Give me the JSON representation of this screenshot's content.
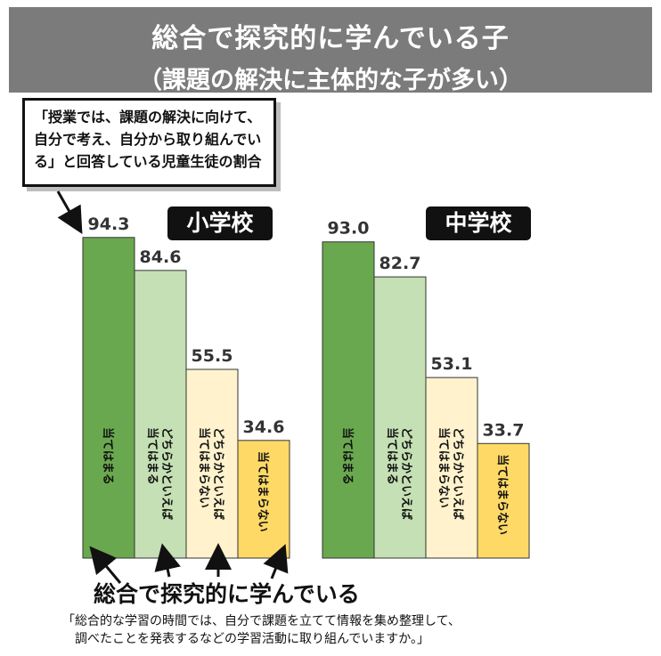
{
  "header": {
    "title": "総合で探究的に学んでいる子",
    "subtitle": "（課題の解決に主体的な子が多い）"
  },
  "callout": {
    "text": "「授業では、課題の解決に向けて、自分で考え、自分から取り組んでいる」と回答している児童生徒の割合"
  },
  "chart_data": [
    {
      "type": "bar",
      "title": "小学校",
      "categories": [
        "当てはまる",
        "どちらかといえば当てはまる",
        "どちらかといえば当てはまらない",
        "当てはまらない"
      ],
      "values": [
        94.3,
        84.6,
        55.5,
        34.6
      ],
      "value_labels": [
        "94.3",
        "84.6",
        "55.5",
        "34.6"
      ],
      "ylim": [
        0,
        100
      ]
    },
    {
      "type": "bar",
      "title": "中学校",
      "categories": [
        "当てはまる",
        "どちらかといえば当てはまる",
        "どちらかといえば当てはまらない",
        "当てはまらない"
      ],
      "values": [
        93.0,
        82.7,
        53.1,
        33.7
      ],
      "value_labels": [
        "93.0",
        "82.7",
        "53.1",
        "33.7"
      ],
      "ylim": [
        0,
        100
      ]
    }
  ],
  "colors": [
    "#6aa84f",
    "#c5e0b4",
    "#fff2cc",
    "#ffd966"
  ],
  "footer": {
    "label": "総合で探究的に学んでいる",
    "question_line1": "「総合的な学習の時間では、自分で課題を立てて情報を集め整理して、",
    "question_line2": "調べたことを発表するなどの学習活動に取り組んでいますか。」"
  }
}
